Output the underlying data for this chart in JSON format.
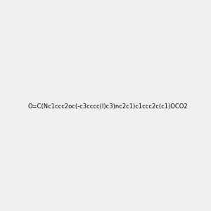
{
  "smiles": "O=C(Nc1ccc2oc(-c3cccc(I)c3)nc2c1)c1ccc2c(c1)OCO2",
  "image_size": 300,
  "background_color": "#f0f0f0",
  "bond_color": "#000000",
  "atom_colors": {
    "O": "#ff0000",
    "N": "#0000ff",
    "I": "#cc00cc"
  }
}
